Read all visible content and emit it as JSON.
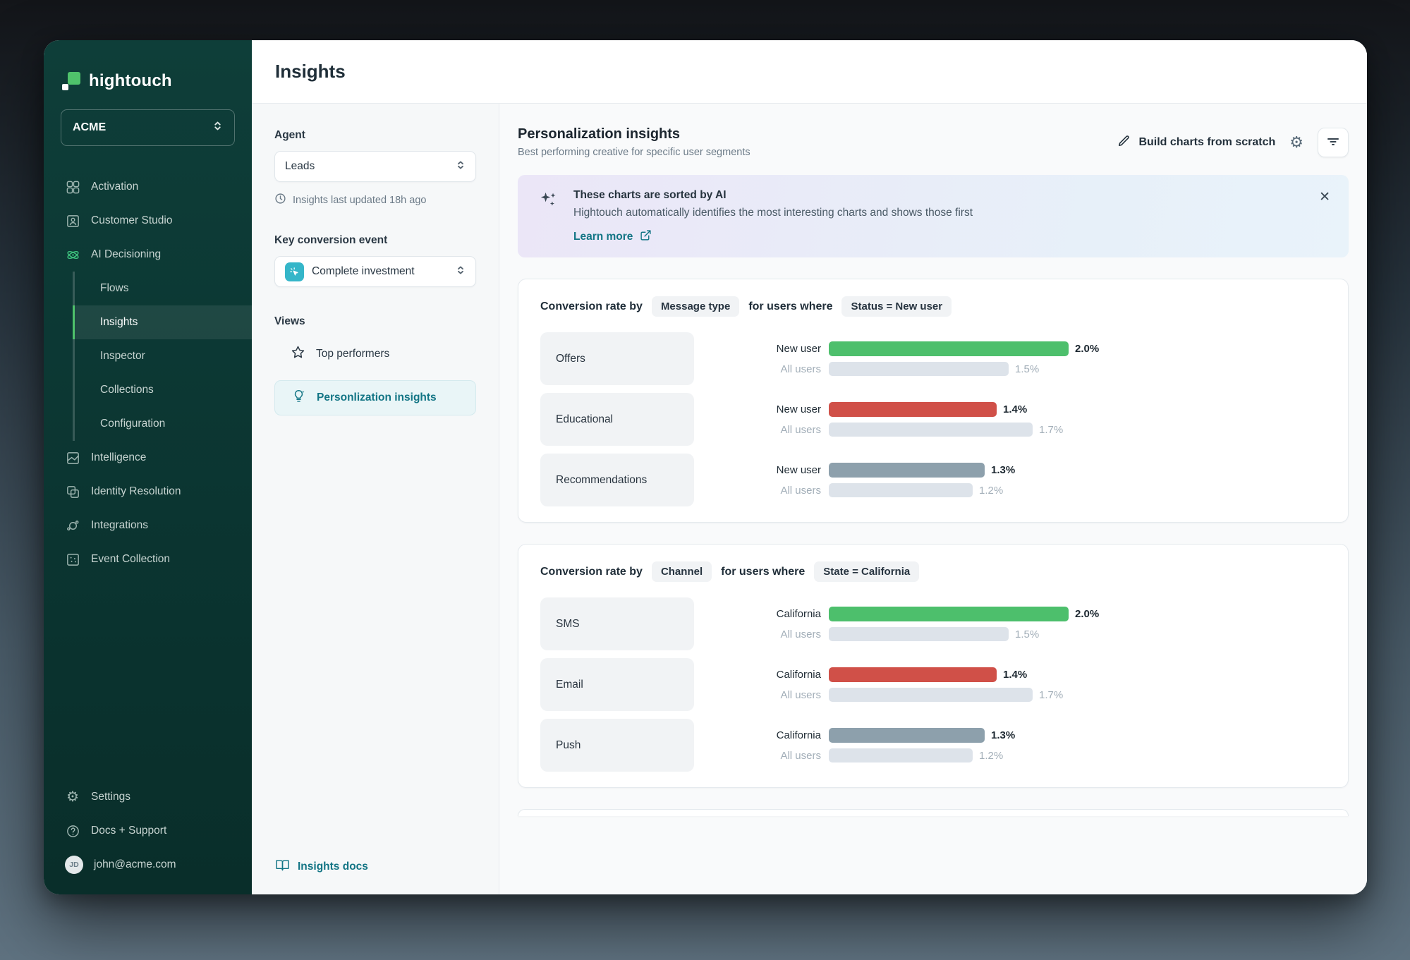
{
  "app": {
    "name": "hightouch",
    "workspace": "ACME"
  },
  "sidebar": {
    "items": [
      {
        "label": "Activation",
        "icon": "grid-icon"
      },
      {
        "label": "Customer Studio",
        "icon": "person-frame-icon"
      },
      {
        "label": "AI Decisioning",
        "icon": "atom-icon"
      }
    ],
    "ai_sub_items": [
      {
        "label": "Flows"
      },
      {
        "label": "Insights",
        "active": true
      },
      {
        "label": "Inspector"
      },
      {
        "label": "Collections"
      },
      {
        "label": "Configuration"
      }
    ],
    "lower_items": [
      {
        "label": "Intelligence",
        "icon": "chart-square-icon"
      },
      {
        "label": "Identity Resolution",
        "icon": "overlap-squares-icon"
      },
      {
        "label": "Integrations",
        "icon": "orbit-icon"
      },
      {
        "label": "Event Collection",
        "icon": "dots-square-icon"
      }
    ],
    "footer_items": [
      {
        "label": "Settings",
        "icon": "gear-icon"
      },
      {
        "label": "Docs + Support",
        "icon": "help-icon"
      }
    ],
    "user": {
      "email": "john@acme.com",
      "initials": "JD"
    }
  },
  "header": {
    "title": "Insights"
  },
  "filter_panel": {
    "agent_label": "Agent",
    "agent_value": "Leads",
    "last_updated": "Insights last updated 18h ago",
    "event_label": "Key conversion event",
    "event_value": "Complete investment",
    "views_label": "Views",
    "views": [
      {
        "label": "Top performers",
        "selected": false
      },
      {
        "label": "Personlization insights",
        "selected": true
      }
    ],
    "docs_link": "Insights docs"
  },
  "content": {
    "title": "Personalization insights",
    "subtitle": "Best performing creative for specific user segments",
    "build_button": "Build charts from scratch",
    "banner": {
      "title": "These charts are sorted by AI",
      "body": "Hightouch automatically identifies the most interesting charts and shows those first",
      "link_label": "Learn more"
    }
  },
  "colors": {
    "accent_teal": "#137585",
    "brand_green": "#4fc26b",
    "bar_green": "#4dbf6c",
    "bar_red": "#d05048",
    "bar_slate": "#8da0ac",
    "bar_gray": "#dde3ea"
  },
  "chart_data": [
    {
      "type": "bar",
      "title": {
        "prefix": "Conversion rate by",
        "dimension": "Message type",
        "middle": "for users where",
        "filter": "Status = New user"
      },
      "unit": "%",
      "xlim": [
        0,
        2.2
      ],
      "categories": [
        "Offers",
        "Educational",
        "Recommendations"
      ],
      "series": [
        {
          "name": "New user",
          "values": [
            2.0,
            1.4,
            1.3
          ]
        },
        {
          "name": "All users",
          "values": [
            1.5,
            1.7,
            1.2
          ]
        }
      ],
      "rows": [
        {
          "label": "Offers",
          "primary": {
            "name": "New user",
            "value": 2.0,
            "display": "2.0%",
            "color": "#4dbf6c"
          },
          "secondary": {
            "name": "All users",
            "value": 1.5,
            "display": "1.5%",
            "color": "#dde3ea"
          }
        },
        {
          "label": "Educational",
          "primary": {
            "name": "New user",
            "value": 1.4,
            "display": "1.4%",
            "color": "#d05048"
          },
          "secondary": {
            "name": "All users",
            "value": 1.7,
            "display": "1.7%",
            "color": "#dde3ea"
          }
        },
        {
          "label": "Recommendations",
          "primary": {
            "name": "New user",
            "value": 1.3,
            "display": "1.3%",
            "color": "#8da0ac"
          },
          "secondary": {
            "name": "All users",
            "value": 1.2,
            "display": "1.2%",
            "color": "#dde3ea"
          }
        }
      ]
    },
    {
      "type": "bar",
      "title": {
        "prefix": "Conversion rate by",
        "dimension": "Channel",
        "middle": "for users where",
        "filter": "State = California"
      },
      "unit": "%",
      "xlim": [
        0,
        2.2
      ],
      "categories": [
        "SMS",
        "Email",
        "Push"
      ],
      "series": [
        {
          "name": "California",
          "values": [
            2.0,
            1.4,
            1.3
          ]
        },
        {
          "name": "All users",
          "values": [
            1.5,
            1.7,
            1.2
          ]
        }
      ],
      "rows": [
        {
          "label": "SMS",
          "primary": {
            "name": "California",
            "value": 2.0,
            "display": "2.0%",
            "color": "#4dbf6c"
          },
          "secondary": {
            "name": "All users",
            "value": 1.5,
            "display": "1.5%",
            "color": "#dde3ea"
          }
        },
        {
          "label": "Email",
          "primary": {
            "name": "California",
            "value": 1.4,
            "display": "1.4%",
            "color": "#d05048"
          },
          "secondary": {
            "name": "All users",
            "value": 1.7,
            "display": "1.7%",
            "color": "#dde3ea"
          }
        },
        {
          "label": "Push",
          "primary": {
            "name": "California",
            "value": 1.3,
            "display": "1.3%",
            "color": "#8da0ac"
          },
          "secondary": {
            "name": "All users",
            "value": 1.2,
            "display": "1.2%",
            "color": "#dde3ea"
          }
        }
      ]
    }
  ]
}
